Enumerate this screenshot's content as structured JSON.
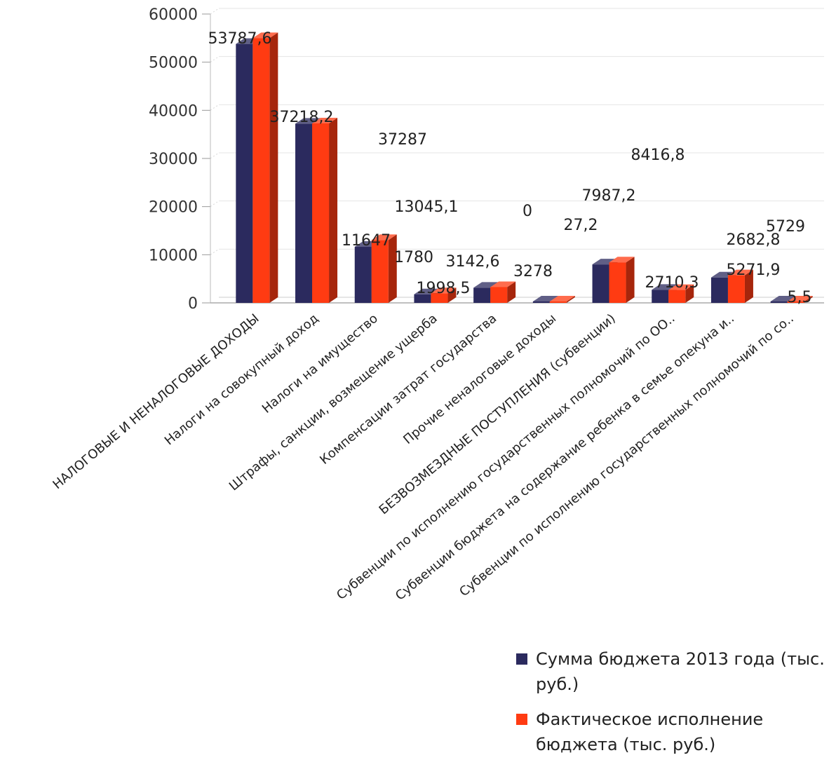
{
  "chart_data": {
    "type": "bar",
    "categories": [
      "НАЛОГОВЫЕ И НЕНАЛОГОВЫЕ ДОХОДЫ",
      "Налоги на совокупный доход",
      "Налоги на имущество",
      "Штрафы, санкции, возмещение ущерба",
      "Компенсации затрат государства",
      "Прочие неналоговые доходы",
      "БЕЗВОЗМЕЗДНЫЕ ПОСТУПЛЕНИЯ (субвенции)",
      "Субвенции по исполнению государственных полномочий по ОО..",
      "Субвенции бюджета на содержание ребенка в семье опекуна и..",
      "Субвенции по исполнению государственных полномочий по со.."
    ],
    "series": [
      {
        "name": "Сумма бюджета 2013 года (тыс. руб.)",
        "color": "#2b2a5e",
        "values": [
          53787.6,
          37218.2,
          11647,
          1780,
          3142.6,
          0,
          7987.2,
          2710.3,
          5271.9,
          5.5
        ]
      },
      {
        "name": "Фактическое исполнение бюджета (тыс. руб.)",
        "color": "#ff3b12",
        "values": [
          55000,
          37287,
          13045.1,
          1998.5,
          3278,
          27.2,
          8416.8,
          2682.8,
          5729,
          5.5
        ]
      }
    ],
    "data_labels": [
      "53787,6",
      "37218,2",
      "37287",
      "13045,1",
      "11647",
      "1780",
      "1998,5",
      "3142,6",
      "3278",
      "0",
      "27,2",
      "7987,2",
      "8416,8",
      "2710,3",
      "2682,8",
      "5271,9",
      "5729",
      "5,5"
    ],
    "y_ticks": [
      "0",
      "10000",
      "20000",
      "30000",
      "40000",
      "50000",
      "60000"
    ],
    "ylim": [
      0,
      60000
    ],
    "grid": true,
    "legend_position": "bottom-right"
  }
}
